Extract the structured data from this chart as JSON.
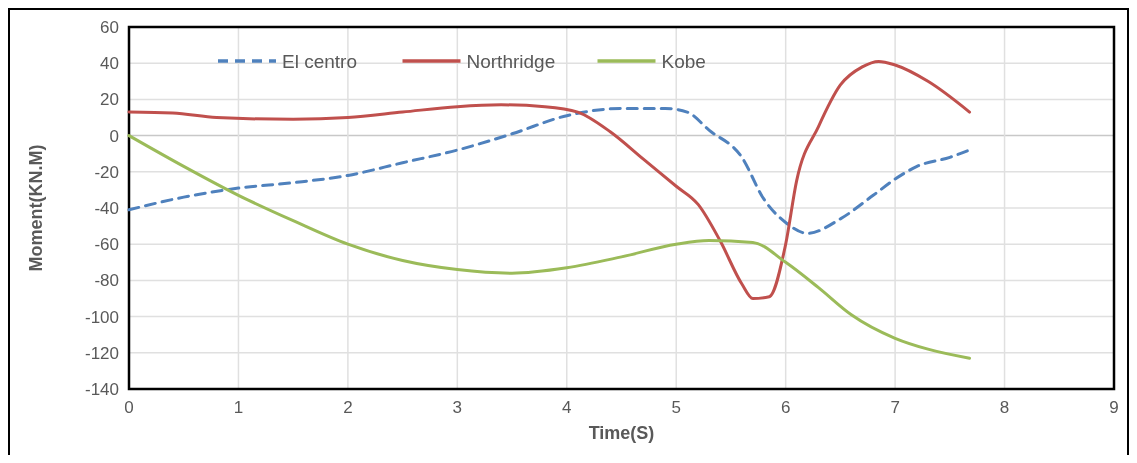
{
  "chart_data": {
    "type": "line",
    "xlabel": "Time(S)",
    "ylabel": "Moment(KN.M)",
    "xlim": [
      0,
      9
    ],
    "xticks": [
      0,
      1,
      2,
      3,
      4,
      5,
      6,
      7,
      8,
      9
    ],
    "ylim": [
      -140,
      60
    ],
    "yticks": [
      -140,
      -120,
      -100,
      -80,
      -60,
      -40,
      -20,
      0,
      20,
      40,
      60
    ],
    "grid": true,
    "legend": "top",
    "series": [
      {
        "name": "El centro",
        "color": "#4f81bd",
        "line_style": "dashed",
        "x": [
          0,
          0.5,
          1,
          1.5,
          2,
          2.5,
          3,
          3.5,
          4,
          4.5,
          4.9,
          5.1,
          5.3,
          5.6,
          5.8,
          6,
          6.2,
          6.5,
          6.8,
          7,
          7.2,
          7.5,
          7.68
        ],
        "values": [
          -41,
          -34,
          -29,
          -26,
          -22,
          -15,
          -8,
          1,
          11,
          15,
          15,
          13,
          3,
          -12,
          -35,
          -48,
          -54,
          -46,
          -33,
          -24,
          -17,
          -12,
          -8
        ]
      },
      {
        "name": "Northridge",
        "color": "#c0504d",
        "line_style": "solid",
        "x": [
          0,
          0.4,
          0.8,
          1.5,
          2,
          2.5,
          3,
          3.4,
          3.8,
          4.1,
          4.4,
          4.7,
          5,
          5.2,
          5.4,
          5.6,
          5.7,
          5.85,
          6,
          6.1,
          6.3,
          6.5,
          6.7,
          6.85,
          7,
          7.3,
          7.68
        ],
        "values": [
          13,
          12.5,
          10,
          9,
          10,
          13,
          16,
          17,
          16,
          13,
          2,
          -13,
          -28,
          -38,
          -58,
          -82,
          -90,
          -89,
          -60,
          -25,
          5,
          28,
          38,
          41,
          39,
          30,
          13
        ]
      },
      {
        "name": "Kobe",
        "color": "#9bbb59",
        "line_style": "solid",
        "x": [
          0,
          0.5,
          1,
          1.5,
          2,
          2.5,
          3,
          3.5,
          4,
          4.5,
          5,
          5.3,
          5.7,
          6,
          6.3,
          6.6,
          7,
          7.3,
          7.68
        ],
        "values": [
          0,
          -17,
          -33,
          -47,
          -60,
          -69,
          -74,
          -76,
          -73,
          -67,
          -60,
          -58,
          -59,
          -70,
          -84,
          -99,
          -112,
          -118,
          -123
        ]
      }
    ]
  }
}
